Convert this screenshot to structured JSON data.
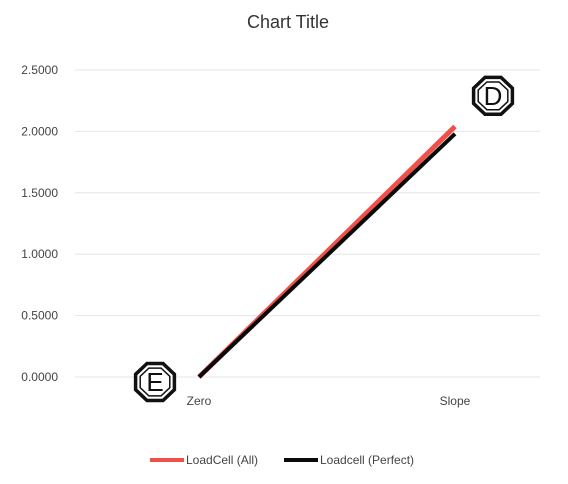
{
  "chart_data": {
    "type": "line",
    "title": "Chart Title",
    "xlabel": "",
    "ylabel": "",
    "categories": [
      "Zero",
      "Slope"
    ],
    "y_ticks": [
      "0.0000",
      "0.5000",
      "1.0000",
      "1.5000",
      "2.0000",
      "2.5000"
    ],
    "ylim": [
      0,
      2.5
    ],
    "grid": true,
    "legend_position": "bottom",
    "series": [
      {
        "name": "LoadCell (All)",
        "values": [
          0.0,
          2.04
        ],
        "color": "#f0504a"
      },
      {
        "name": "Loadcell (Perfect)",
        "values": [
          0.0,
          1.98
        ],
        "color": "#0a0a0a"
      }
    ],
    "annotations": [
      {
        "text": "D",
        "anchor_category": "Slope",
        "anchor_series": 1,
        "placement": "upper-right"
      },
      {
        "text": "E",
        "anchor_category": "Zero",
        "anchor_series": 1,
        "placement": "left"
      }
    ]
  }
}
